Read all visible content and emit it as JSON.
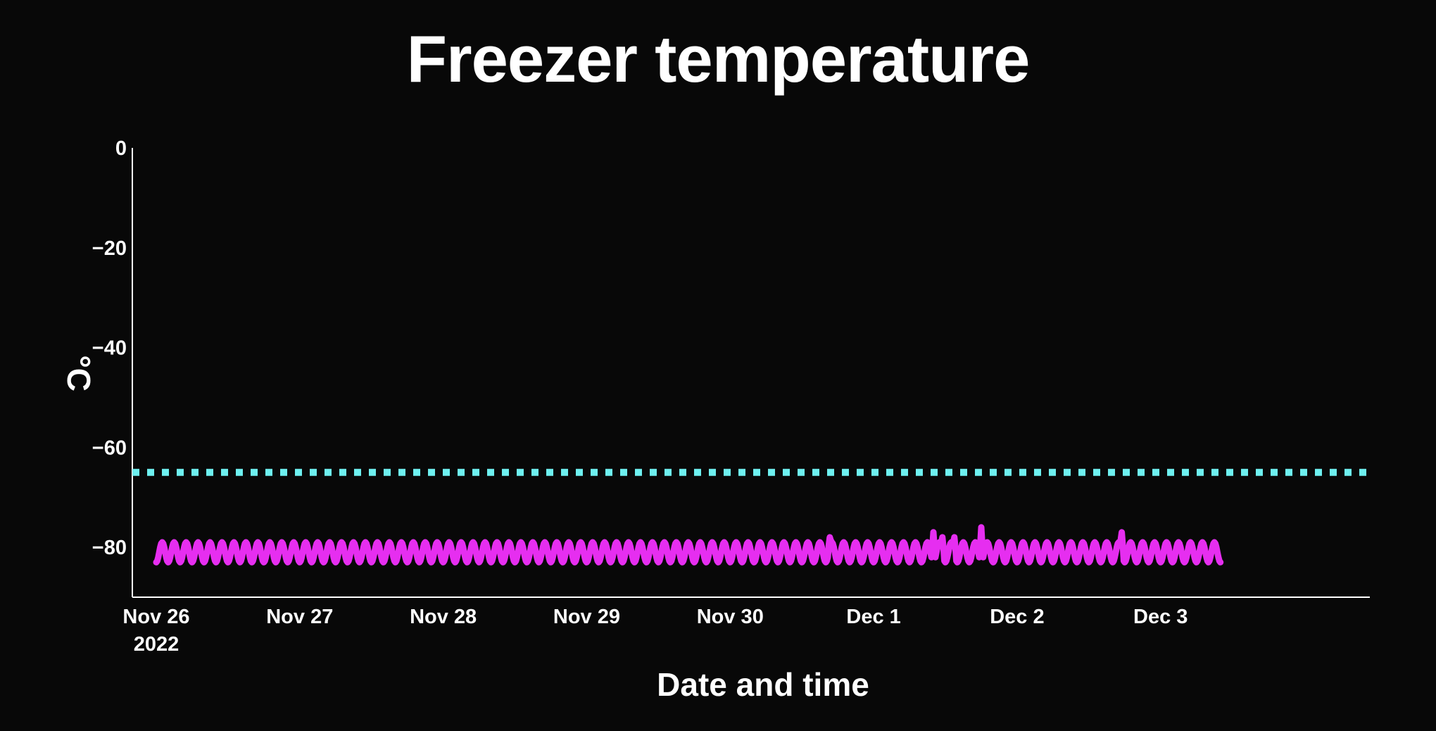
{
  "chart_data": {
    "type": "line",
    "title": "Freezer temperature",
    "xlabel": "Date and time",
    "ylabel": "°C",
    "x_range": [
      "2022-11-25T20:00",
      "2022-12-04T11:00"
    ],
    "ylim": [
      -90,
      0
    ],
    "y_ticks": [
      0,
      -20,
      -40,
      -60,
      -80
    ],
    "y_tick_labels": [
      "0",
      "−20",
      "−40",
      "−60",
      "−80"
    ],
    "x_ticks": [
      {
        "date": "2022-11-26T00:00",
        "label": "Nov 26",
        "sublabel": "2022"
      },
      {
        "date": "2022-11-27T00:00",
        "label": "Nov 27",
        "sublabel": ""
      },
      {
        "date": "2022-11-28T00:00",
        "label": "Nov 28",
        "sublabel": ""
      },
      {
        "date": "2022-11-29T00:00",
        "label": "Nov 29",
        "sublabel": ""
      },
      {
        "date": "2022-11-30T00:00",
        "label": "Nov 30",
        "sublabel": ""
      },
      {
        "date": "2022-12-01T00:00",
        "label": "Dec 1",
        "sublabel": ""
      },
      {
        "date": "2022-12-02T00:00",
        "label": "Dec 2",
        "sublabel": ""
      },
      {
        "date": "2022-12-03T00:00",
        "label": "Dec 3",
        "sublabel": ""
      }
    ],
    "grid": false,
    "series": [
      {
        "color": "#e62ef0",
        "style": "solid",
        "description": "temperature readings oscillating between about −83 and −79 °C",
        "x_start": "2022-11-26T00:00",
        "x_end": "2022-12-03T10:00",
        "base": -81,
        "amplitude": 2,
        "cycle_hours": 2,
        "spikes": [
          {
            "date": "2022-11-30T16:40",
            "value": -78
          },
          {
            "date": "2022-12-01T10:00",
            "value": -77
          },
          {
            "date": "2022-12-01T11:30",
            "value": -78
          },
          {
            "date": "2022-12-01T13:30",
            "value": -78
          },
          {
            "date": "2022-12-01T18:00",
            "value": -76
          },
          {
            "date": "2022-12-02T17:30",
            "value": -77
          }
        ]
      },
      {
        "color": "#6ef0f0",
        "style": "dotted",
        "description": "threshold line",
        "value": -65,
        "x_start": "2022-11-25T20:00",
        "x_end": "2022-12-04T11:00"
      }
    ]
  }
}
